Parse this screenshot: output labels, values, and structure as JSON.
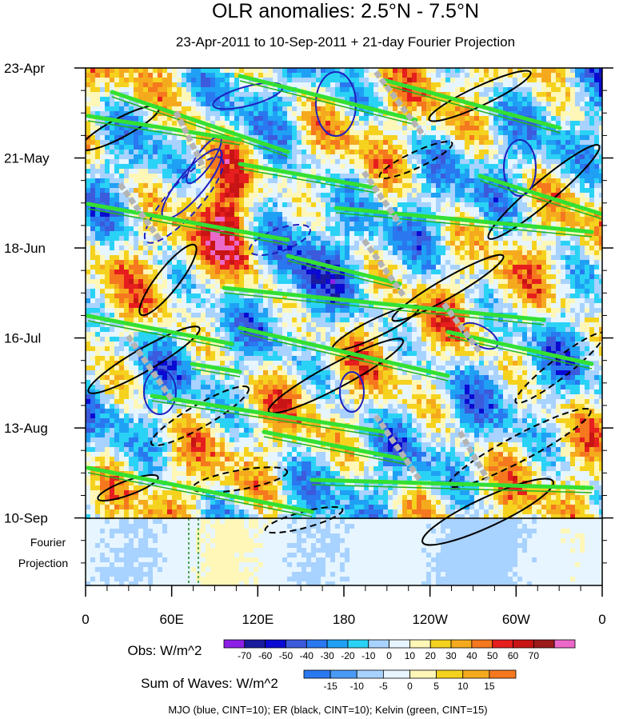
{
  "chart_data": {
    "type": "heatmap",
    "title": "OLR anomalies: 2.5°N - 7.5°N",
    "subtitle": "23-Apr-2011 to 10-Sep-2011 + 21-day Fourier Projection",
    "x_tick_labels": [
      "0",
      "60E",
      "120E",
      "180",
      "120W",
      "60W",
      "0"
    ],
    "y_tick_labels": [
      "23-Apr",
      "21-May",
      "18-Jun",
      "16-Jul",
      "13-Aug",
      "10-Sep"
    ],
    "y_days_from_start": [
      0,
      28,
      56,
      84,
      112,
      140
    ],
    "projection_days": 21,
    "projection_label_line1": "Fourier",
    "projection_label_line2": "Projection",
    "obs_label": "Obs: W/m^2",
    "obs_levels": [
      -70,
      -60,
      -50,
      -40,
      -30,
      -20,
      -10,
      0,
      10,
      20,
      30,
      40,
      50,
      60,
      70
    ],
    "obs_colors": [
      "#8c1fe6",
      "#1a1a9e",
      "#0a0ad2",
      "#3c5adc",
      "#2a78f0",
      "#1fa0f5",
      "#2ad2f5",
      "#a8d2ff",
      "#e6f5ff",
      "#fff7b8",
      "#f5d21e",
      "#f5aa1e",
      "#f5781e",
      "#e61e1e",
      "#c81414",
      "#9e1a1a",
      "#eb69c8"
    ],
    "waves_label": "Sum of Waves: W/m^2",
    "waves_levels": [
      -15,
      -10,
      -5,
      0,
      5,
      10,
      15
    ],
    "waves_colors": [
      "#2a78f0",
      "#4a9af5",
      "#a8d2ff",
      "#e6f5ff",
      "#fff7b8",
      "#f5d21e",
      "#f5aa1e",
      "#f5781e"
    ],
    "footer": "MJO (blue, CINT=10); ER (black, CINT=10); Kelvin (green, CINT=15)",
    "overlays": [
      {
        "name": "MJO",
        "color": "blue",
        "cint": 10
      },
      {
        "name": "ER",
        "color": "black",
        "cint": 10
      },
      {
        "name": "Kelvin",
        "color": "green",
        "cint": 15
      }
    ]
  }
}
